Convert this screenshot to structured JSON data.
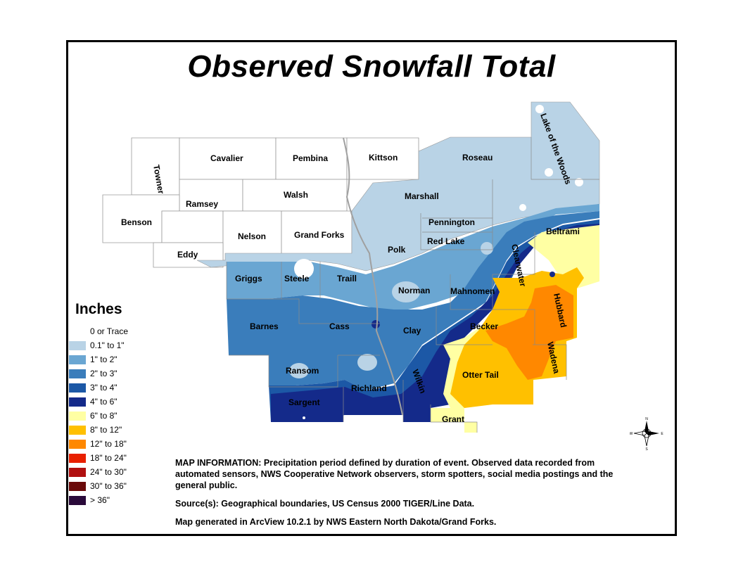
{
  "title": "Observed Snowfall Total",
  "legend": {
    "title": "Inches",
    "items": [
      {
        "label": "0 or Trace",
        "color": "#ffffff"
      },
      {
        "label": "0.1\" to 1\"",
        "color": "#b9d3e6"
      },
      {
        "label": "1\" to 2\"",
        "color": "#6aa6d2"
      },
      {
        "label": "2\" to 3\"",
        "color": "#3a7dbb"
      },
      {
        "label": "3\" to 4\"",
        "color": "#1c58a6"
      },
      {
        "label": "4\" to 6\"",
        "color": "#142a8a"
      },
      {
        "label": "6\" to 8\"",
        "color": "#ffffa3"
      },
      {
        "label": "8\" to 12\"",
        "color": "#ffc000"
      },
      {
        "label": "12\" to 18\"",
        "color": "#ff8800"
      },
      {
        "label": "18\" to 24\"",
        "color": "#e82000"
      },
      {
        "label": "24\" to 30\"",
        "color": "#b01010"
      },
      {
        "label": "30\" to 36\"",
        "color": "#6a0a0a"
      },
      {
        "label": "> 36\"",
        "color": "#2a0a3a"
      }
    ]
  },
  "counties": {
    "towner": "Towner",
    "cavalier": "Cavalier",
    "pembina": "Pembina",
    "kittson": "Kittson",
    "roseau": "Roseau",
    "lake_of_the_woods": "Lake of the Woods",
    "ramsey": "Ramsey",
    "walsh": "Walsh",
    "marshall": "Marshall",
    "benson": "Benson",
    "nelson": "Nelson",
    "grand_forks": "Grand Forks",
    "pennington": "Pennington",
    "beltrami": "Beltrami",
    "eddy": "Eddy",
    "red_lake": "Red Lake",
    "polk": "Polk",
    "clearwater": "Clearwater",
    "griggs": "Griggs",
    "steele": "Steele",
    "traill": "Traill",
    "norman": "Norman",
    "mahnomen": "Mahnomen",
    "hubbard": "Hubbard",
    "barnes": "Barnes",
    "cass": "Cass",
    "clay": "Clay",
    "becker": "Becker",
    "wadena": "Wadena",
    "ransom": "Ransom",
    "richland": "Richland",
    "wilkin": "Wilkin",
    "otter_tail": "Otter Tail",
    "sargent": "Sargent",
    "grant": "Grant"
  },
  "info": {
    "map_information": "MAP INFORMATION:  Precipitation period defined by duration of event.  Observed data recorded from automated sensors,  NWS Cooperative Network observers, storm spotters, social media postings and the general public.",
    "sources": "Source(s):  Geographical boundaries, US Census 2000 TIGER/Line Data.",
    "generated": "Map generated in ArcView 10.2.1 by NWS Eastern North Dakota/Grand Forks."
  },
  "compass": {
    "n": "N",
    "s": "S",
    "e": "E",
    "w": "W"
  }
}
